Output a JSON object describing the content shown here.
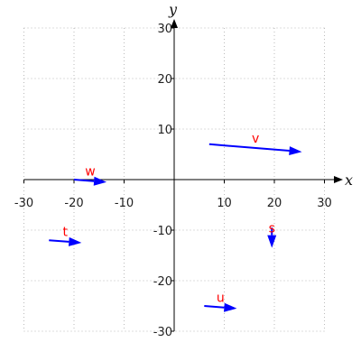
{
  "chart_data": {
    "type": "vector-field",
    "xlabel": "x",
    "ylabel": "y",
    "xlim": [
      -30,
      30
    ],
    "ylim": [
      -30,
      30
    ],
    "xticks": [
      -30,
      -20,
      -10,
      10,
      20,
      30
    ],
    "yticks": [
      -30,
      -20,
      -10,
      10,
      20,
      30
    ],
    "grid": true,
    "vector_color": "#0000ff",
    "label_color": "#ff0000",
    "vectors": [
      {
        "name": "v",
        "start": [
          7,
          7
        ],
        "end": [
          25.5,
          5.5
        ]
      },
      {
        "name": "w",
        "start": [
          -20,
          0
        ],
        "end": [
          -13.5,
          -0.5
        ]
      },
      {
        "name": "t",
        "start": [
          -25,
          -12
        ],
        "end": [
          -18.5,
          -12.5
        ]
      },
      {
        "name": "s",
        "start": [
          19.5,
          -9.5
        ],
        "end": [
          19.5,
          -13.5
        ]
      },
      {
        "name": "u",
        "start": [
          6,
          -25
        ],
        "end": [
          12.5,
          -25.5
        ]
      }
    ]
  }
}
